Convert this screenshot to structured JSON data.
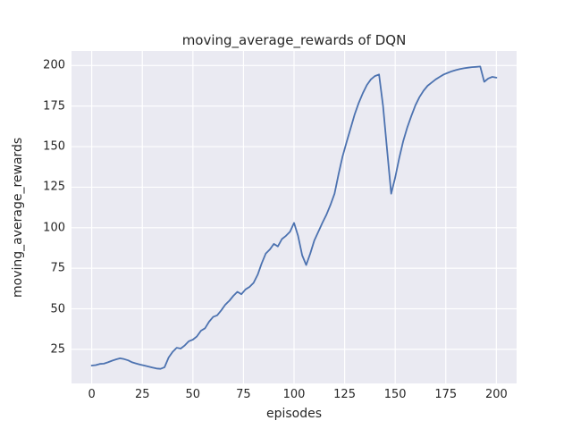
{
  "chart_data": {
    "type": "line",
    "title": "moving_average_rewards of DQN",
    "xlabel": "episodes",
    "ylabel": "moving_average_rewards",
    "xlim": [
      -10,
      210
    ],
    "ylim": [
      4,
      209
    ],
    "xticks": [
      0,
      25,
      50,
      75,
      100,
      125,
      150,
      175,
      200
    ],
    "yticks": [
      25,
      50,
      75,
      100,
      125,
      150,
      175,
      200
    ],
    "grid": true,
    "legend": "none",
    "line_color": "#4C72B0",
    "plot_background": "#eaeaf2",
    "grid_color": "#ffffff",
    "text_color": "#262626",
    "series": [
      {
        "name": "moving_average_rewards",
        "x": [
          0,
          2,
          4,
          6,
          8,
          10,
          12,
          14,
          16,
          18,
          20,
          22,
          24,
          26,
          28,
          30,
          32,
          34,
          36,
          38,
          40,
          42,
          44,
          46,
          48,
          50,
          52,
          54,
          56,
          58,
          60,
          62,
          64,
          66,
          68,
          70,
          72,
          74,
          76,
          78,
          80,
          82,
          84,
          86,
          88,
          90,
          92,
          94,
          96,
          98,
          100,
          102,
          104,
          106,
          108,
          110,
          112,
          114,
          116,
          118,
          120,
          122,
          124,
          126,
          128,
          130,
          132,
          134,
          136,
          138,
          140,
          142,
          144,
          146,
          148,
          150,
          152,
          154,
          156,
          158,
          160,
          162,
          164,
          166,
          168,
          170,
          172,
          174,
          176,
          178,
          180,
          182,
          184,
          186,
          188,
          190,
          192,
          194,
          196,
          198,
          200
        ],
        "y": [
          15,
          15.3,
          16,
          16.2,
          17,
          18,
          18.8,
          19.5,
          19,
          18.2,
          17,
          16.3,
          15.6,
          15,
          14.4,
          13.8,
          13.2,
          13,
          14,
          20,
          23.5,
          26,
          25.5,
          27.5,
          30,
          31,
          33,
          36.5,
          38,
          42,
          45,
          46,
          49,
          52.5,
          55,
          58,
          60.5,
          59,
          62,
          63.5,
          66,
          71,
          78,
          84,
          86.5,
          90,
          88.5,
          93,
          95,
          97.5,
          103,
          95,
          83,
          77,
          84,
          92,
          97.5,
          103,
          108,
          114,
          121,
          133,
          144,
          153,
          161.5,
          170,
          177,
          183,
          188,
          191.5,
          193.5,
          194.5,
          175,
          148,
          121,
          131,
          143,
          153.5,
          162,
          169,
          175.5,
          180.5,
          184.5,
          187.5,
          189.5,
          191.5,
          193,
          194.5,
          195.5,
          196.5,
          197.2,
          197.8,
          198.3,
          198.7,
          199,
          199.2,
          199.4,
          190,
          192,
          193,
          192.5
        ]
      }
    ]
  }
}
